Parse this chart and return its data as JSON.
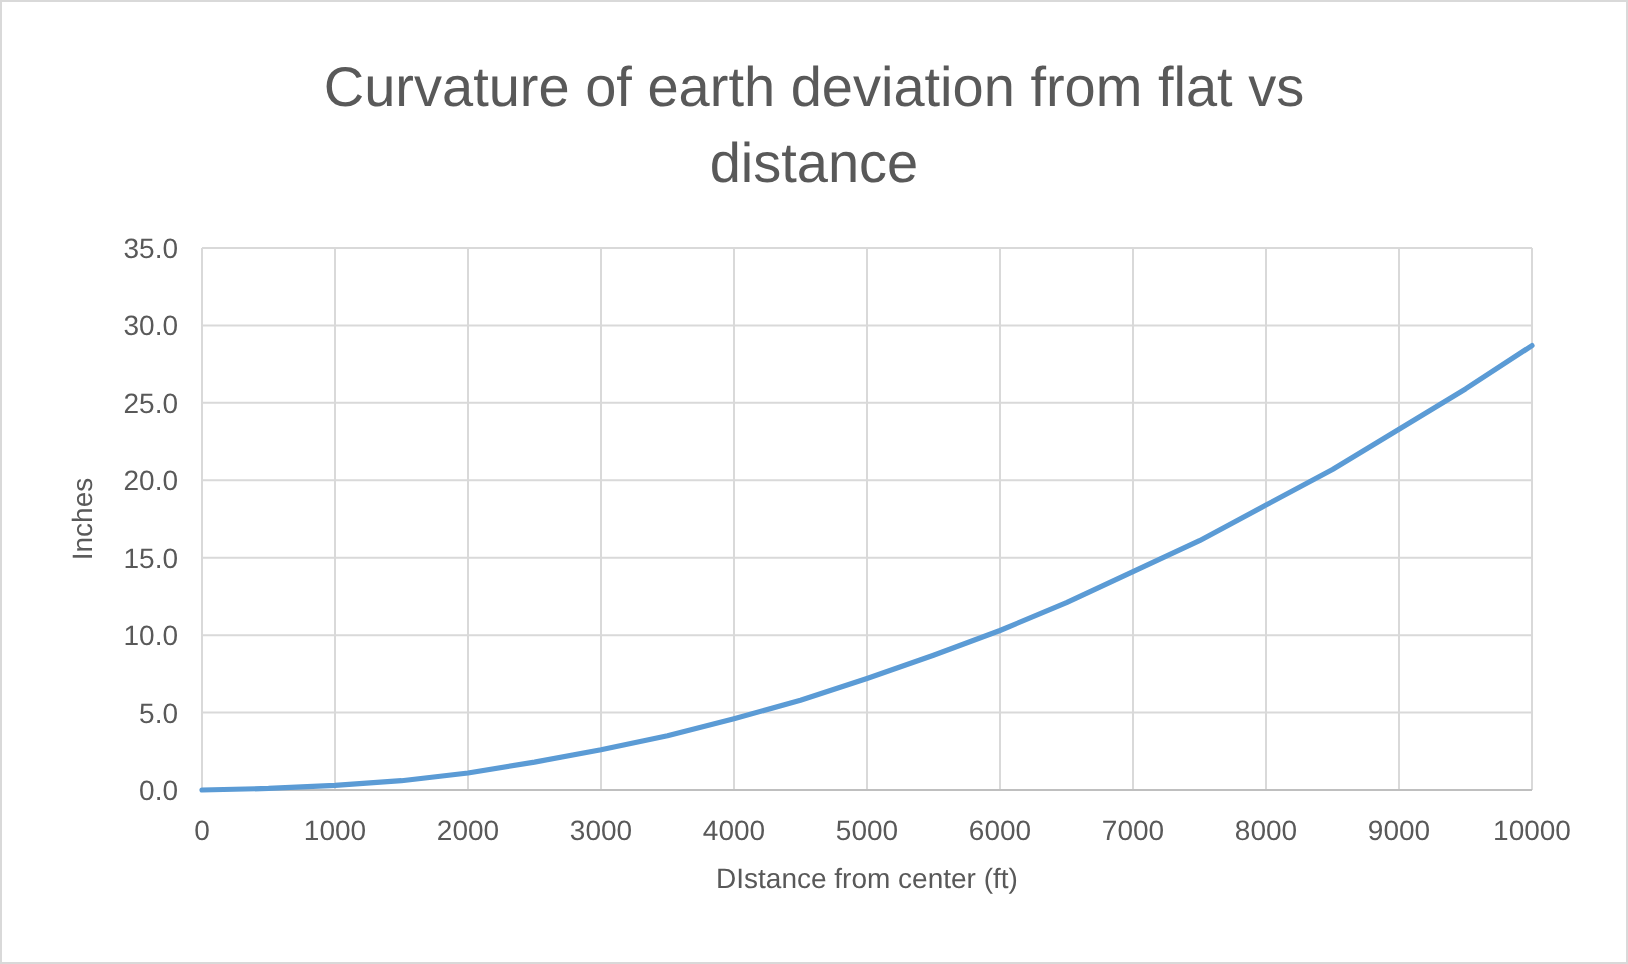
{
  "chart_data": {
    "type": "line",
    "title": "Curvature of earth deviation from flat vs distance",
    "xlabel": "DIstance from center (ft)",
    "ylabel": "Inches",
    "x": [
      0,
      500,
      1000,
      1500,
      2000,
      2500,
      3000,
      3500,
      4000,
      4500,
      5000,
      5500,
      6000,
      6500,
      7000,
      7500,
      8000,
      8500,
      9000,
      9500,
      10000
    ],
    "series": [
      {
        "color": "#5b9bd5",
        "values": [
          0,
          0.1,
          0.3,
          0.6,
          1.1,
          1.8,
          2.6,
          3.5,
          4.6,
          5.8,
          7.2,
          8.7,
          10.3,
          12.1,
          14.1,
          16.1,
          18.4,
          20.7,
          23.3,
          25.9,
          28.7
        ]
      }
    ],
    "xlim": [
      0,
      10000
    ],
    "xticks": [
      0,
      1000,
      2000,
      3000,
      4000,
      5000,
      6000,
      7000,
      8000,
      9000,
      10000
    ],
    "ylim": [
      0,
      35
    ],
    "yticks": [
      {
        "value": 0,
        "label": "0.0"
      },
      {
        "value": 5,
        "label": "5.0"
      },
      {
        "value": 10,
        "label": "10.0"
      },
      {
        "value": 15,
        "label": "15.0"
      },
      {
        "value": 20,
        "label": "20.0"
      },
      {
        "value": 25,
        "label": "25.0"
      },
      {
        "value": 30,
        "label": "30.0"
      },
      {
        "value": 35,
        "label": "35.0"
      }
    ],
    "grid": true,
    "marker": "none",
    "line_style": "solid"
  }
}
